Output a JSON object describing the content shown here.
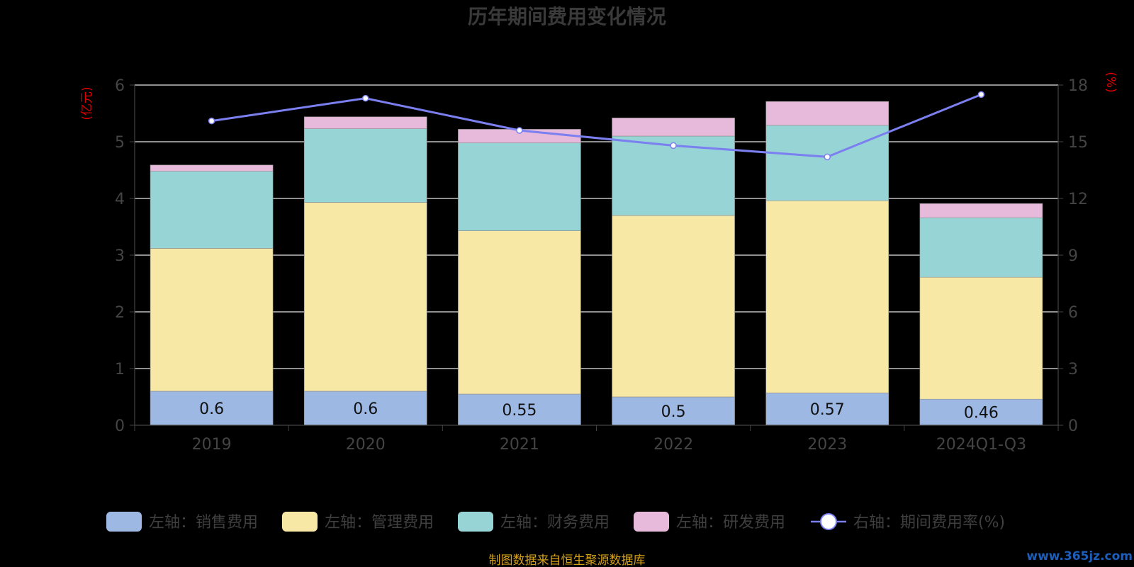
{
  "chart_data": {
    "type": "bar",
    "title": "历年期间费用变化情况",
    "categories": [
      "2019",
      "2020",
      "2021",
      "2022",
      "2023",
      "2024Q1-Q3"
    ],
    "left_axis": {
      "unit": "(亿元)",
      "range": [
        0,
        6
      ],
      "ticks": [
        "0",
        "1",
        "2",
        "3",
        "4",
        "5",
        "6"
      ]
    },
    "right_axis": {
      "unit": "(%)",
      "range": [
        0,
        18
      ],
      "ticks": [
        "0",
        "3",
        "6",
        "9",
        "12",
        "15",
        "18"
      ]
    },
    "stacked_series": [
      {
        "name": "左轴：销售费用",
        "color": "#9db8e3",
        "values": [
          0.6,
          0.6,
          0.55,
          0.5,
          0.57,
          0.46
        ],
        "labels": [
          "0.6",
          "0.6",
          "0.55",
          "0.5",
          "0.57",
          "0.46"
        ]
      },
      {
        "name": "左轴：管理费用",
        "color": "#f8e8a6",
        "values": [
          2.52,
          3.33,
          2.88,
          3.2,
          3.39,
          2.15
        ]
      },
      {
        "name": "左轴：财务费用",
        "color": "#97d4d5",
        "values": [
          1.36,
          1.3,
          1.55,
          1.4,
          1.33,
          1.05
        ]
      },
      {
        "name": "左轴：研发费用",
        "color": "#e7b9da",
        "values": [
          0.11,
          0.21,
          0.24,
          0.32,
          0.42,
          0.25
        ]
      }
    ],
    "line_series": {
      "name": "右轴：期间费用率(%)",
      "color": "#7b7ff0",
      "values": [
        16.1,
        17.3,
        15.6,
        14.8,
        14.2,
        17.5
      ]
    },
    "grid": true,
    "legend": "bottom"
  },
  "source_note": "制图数据来自恒生聚源数据库",
  "watermark": "www.365jz.com"
}
